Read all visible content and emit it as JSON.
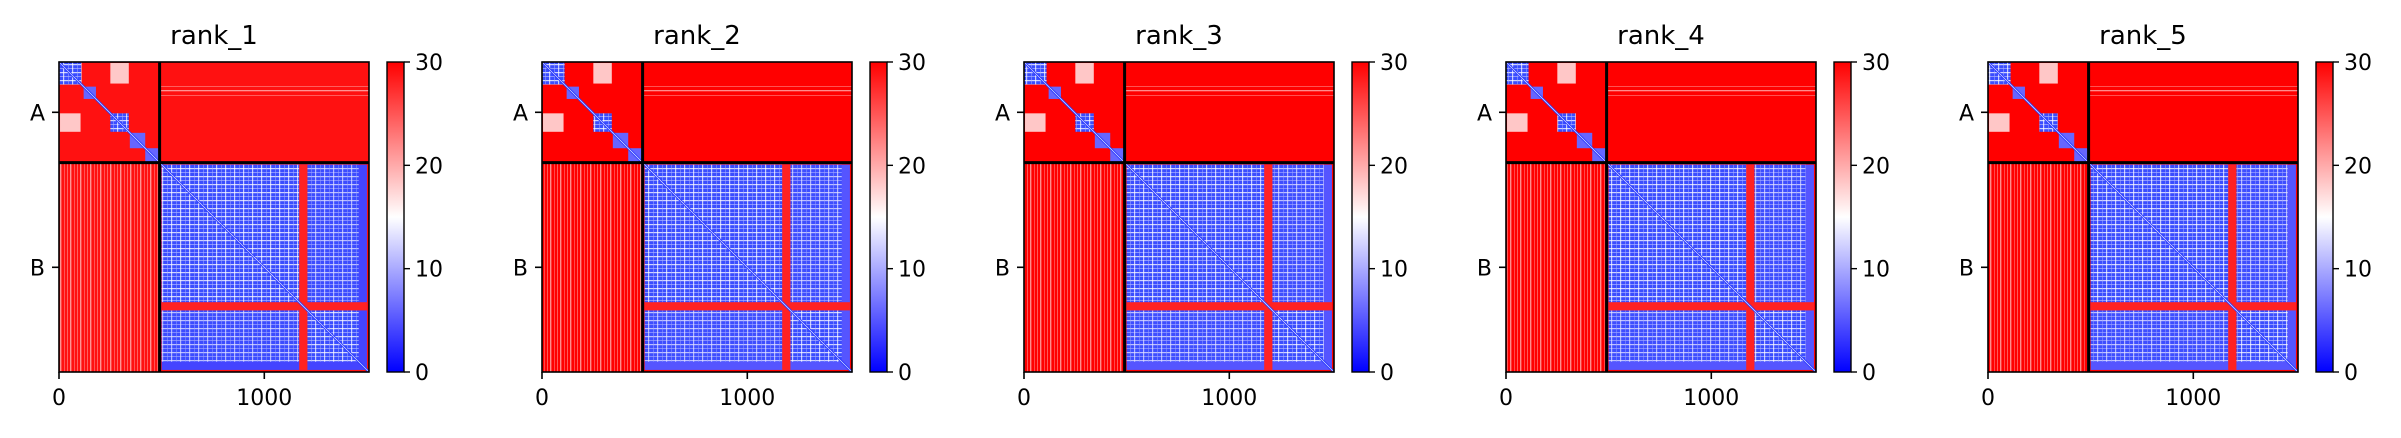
{
  "chart_data": [
    {
      "type": "heatmap",
      "title": "rank_1",
      "x_ticks": [
        "0",
        "1000"
      ],
      "y_labels": [
        "A",
        "B"
      ],
      "colorbar": {
        "ticks": [
          "0",
          "10",
          "20",
          "30"
        ],
        "range": [
          0,
          30
        ],
        "colormap": "bwr"
      },
      "chain_boundary": 490,
      "sequence_length": 1510,
      "intra_B_pae_level": 4,
      "inter_chain_pae_level": 29
    },
    {
      "type": "heatmap",
      "title": "rank_2",
      "x_ticks": [
        "0",
        "1000"
      ],
      "y_labels": [
        "A",
        "B"
      ],
      "colorbar": {
        "ticks": [
          "0",
          "10",
          "20",
          "30"
        ],
        "range": [
          0,
          30
        ],
        "colormap": "bwr"
      },
      "chain_boundary": 490,
      "sequence_length": 1510,
      "intra_B_pae_level": 5,
      "inter_chain_pae_level": 30
    },
    {
      "type": "heatmap",
      "title": "rank_3",
      "x_ticks": [
        "0",
        "1000"
      ],
      "y_labels": [
        "A",
        "B"
      ],
      "colorbar": {
        "ticks": [
          "0",
          "10",
          "20",
          "30"
        ],
        "range": [
          0,
          30
        ],
        "colormap": "bwr"
      },
      "chain_boundary": 490,
      "sequence_length": 1510,
      "intra_B_pae_level": 5,
      "inter_chain_pae_level": 30
    },
    {
      "type": "heatmap",
      "title": "rank_4",
      "x_ticks": [
        "0",
        "1000"
      ],
      "y_labels": [
        "A",
        "B"
      ],
      "colorbar": {
        "ticks": [
          "0",
          "10",
          "20",
          "30"
        ],
        "range": [
          0,
          30
        ],
        "colormap": "bwr"
      },
      "chain_boundary": 490,
      "sequence_length": 1510,
      "intra_B_pae_level": 5,
      "inter_chain_pae_level": 30
    },
    {
      "type": "heatmap",
      "title": "rank_5",
      "x_ticks": [
        "0",
        "1000"
      ],
      "y_labels": [
        "A",
        "B"
      ],
      "colorbar": {
        "ticks": [
          "0",
          "10",
          "20",
          "30"
        ],
        "range": [
          0,
          30
        ],
        "colormap": "bwr"
      },
      "chain_boundary": 490,
      "sequence_length": 1510,
      "intra_B_pae_level": 5,
      "inter_chain_pae_level": 30
    }
  ],
  "colors": {
    "high": "#ff0000",
    "mid": "#ffffff",
    "low": "#0000ff",
    "axis": "#000000"
  }
}
